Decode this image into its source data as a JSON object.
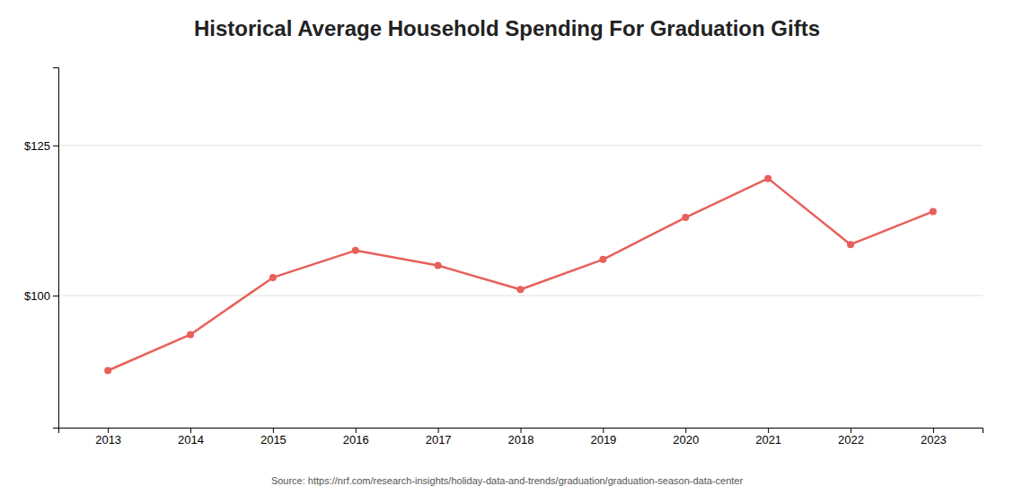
{
  "chart_data": {
    "type": "line",
    "title": "Historical Average Household Spending For Graduation Gifts",
    "x": [
      2013,
      2014,
      2015,
      2016,
      2017,
      2018,
      2019,
      2020,
      2021,
      2022,
      2023
    ],
    "values": [
      87.5,
      93.5,
      103.0,
      107.5,
      105.0,
      101.0,
      106.0,
      113.0,
      119.5,
      108.5,
      114.0
    ],
    "color": "#E8605A",
    "marker": "circle",
    "xlim": [
      2012.4,
      2023.6
    ],
    "xticks": [
      2013,
      2014,
      2015,
      2016,
      2017,
      2018,
      2019,
      2020,
      2021,
      2022,
      2023
    ],
    "ylim": [
      78,
      138
    ],
    "yticks": [
      {
        "value": 100,
        "label": "$100"
      },
      {
        "value": 125,
        "label": "$125"
      }
    ],
    "grid": "y",
    "annotations": [
      "Source: https://nrf.com/research-insights/holiday-data-and-trends/graduation/graduation-season-data-center"
    ]
  }
}
